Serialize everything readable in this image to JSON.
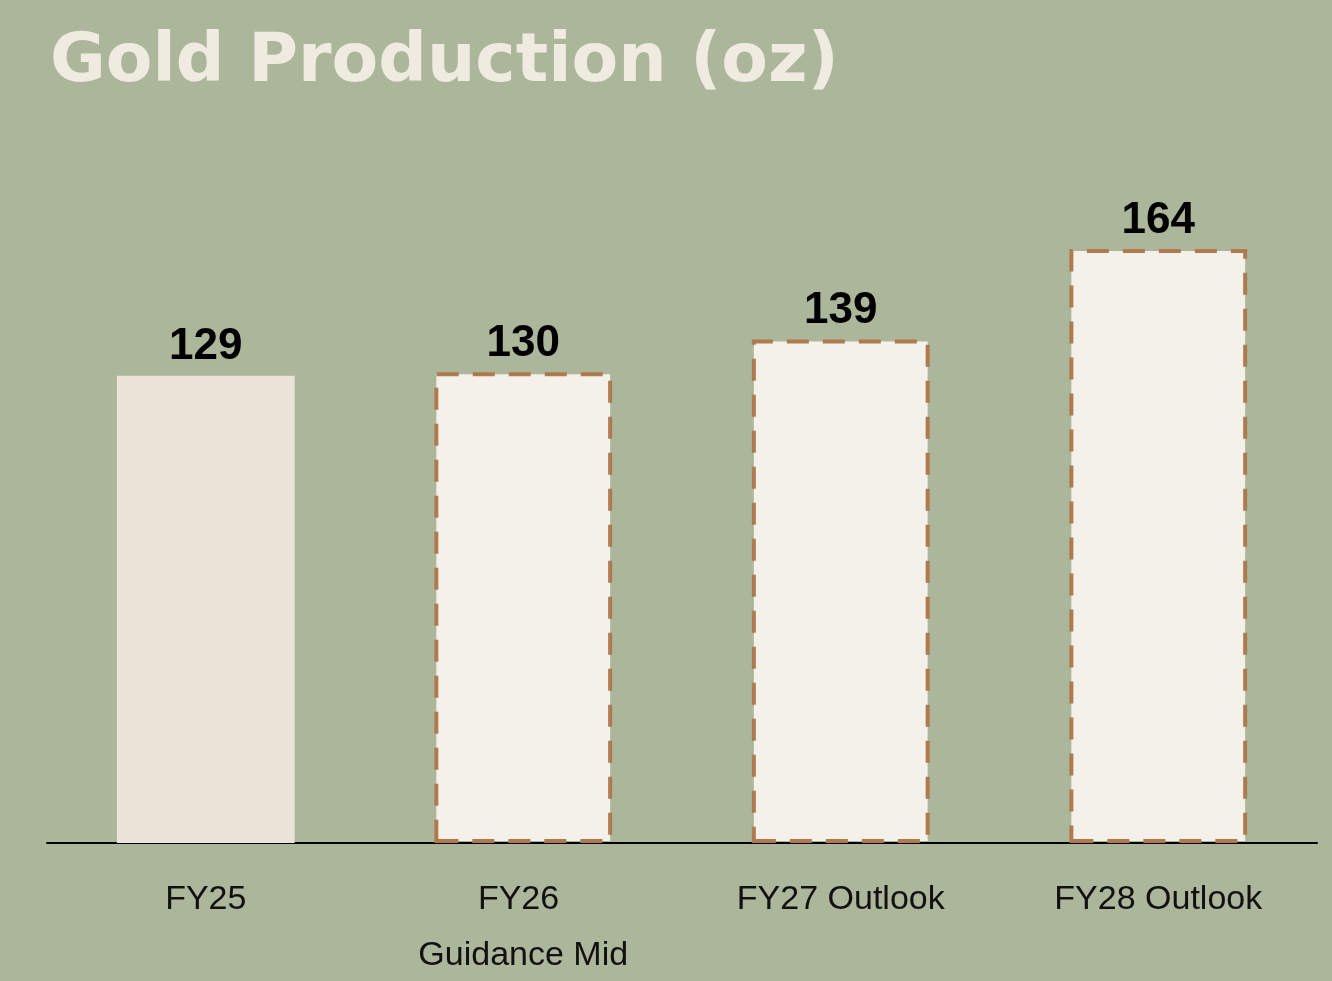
{
  "chart_data": {
    "type": "bar",
    "title": "Gold Production (oz)",
    "categories": [
      "FY25",
      "FY26 Guidance Mid",
      "FY27 Outlook",
      "FY28 Outlook"
    ],
    "series": [
      {
        "color": "#ebe4d8",
        "values": [
          129,
          null,
          null,
          null
        ]
      },
      {
        "color": "#f4f0ea",
        "values": [
          null,
          130,
          139,
          164
        ],
        "line_style": "dashed"
      }
    ],
    "data_labels": true
  }
}
